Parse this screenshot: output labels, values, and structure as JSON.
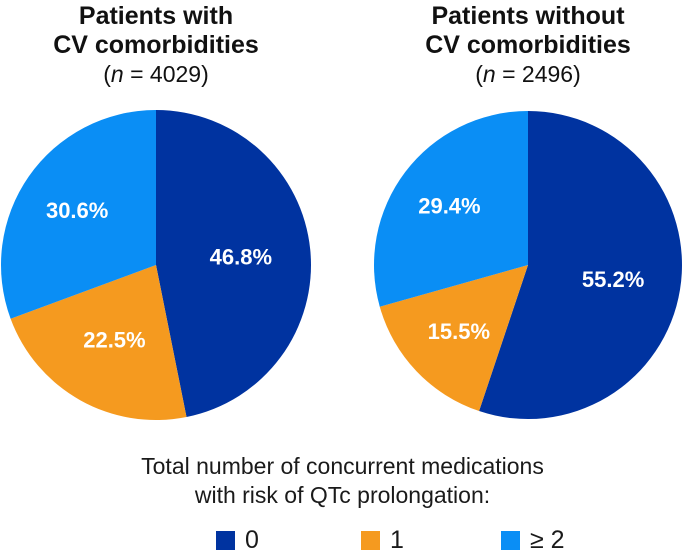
{
  "chart_data": [
    {
      "type": "pie",
      "title": "Patients with CV comorbidities",
      "title_line1": "Patients with",
      "title_line2": "CV comorbidities",
      "n_label": "(n = 4029)",
      "n": 4029,
      "categories": [
        "0",
        "1",
        "≥ 2"
      ],
      "values": [
        46.8,
        22.5,
        30.6
      ],
      "labels": [
        "46.8%",
        "22.5%",
        "30.6%"
      ],
      "start": "12 o'clock",
      "direction": "clockwise"
    },
    {
      "type": "pie",
      "title": "Patients without CV comorbidities",
      "title_line1": "Patients without",
      "title_line2": "CV comorbidities",
      "n_label": "(n = 2496)",
      "n": 2496,
      "categories": [
        "0",
        "1",
        "≥ 2"
      ],
      "values": [
        55.2,
        15.5,
        29.4
      ],
      "labels": [
        "55.2%",
        "15.5%",
        "29.4%"
      ],
      "start": "12 o'clock",
      "direction": "clockwise"
    }
  ],
  "legend": {
    "title_line1": "Total number of concurrent medications",
    "title_line2": "with risk of QTc prolongation:",
    "placement": "bottom",
    "items": [
      {
        "label": "0",
        "color": "#0033a0"
      },
      {
        "label": "1",
        "color": "#f59a1f"
      },
      {
        "label": "≥ 2",
        "color": "#0a8ef5"
      }
    ]
  },
  "colors": {
    "zero": "#0033a0",
    "one": "#f59a1f",
    "two_plus": "#0a8ef5",
    "slice_label": "#ffffff"
  }
}
